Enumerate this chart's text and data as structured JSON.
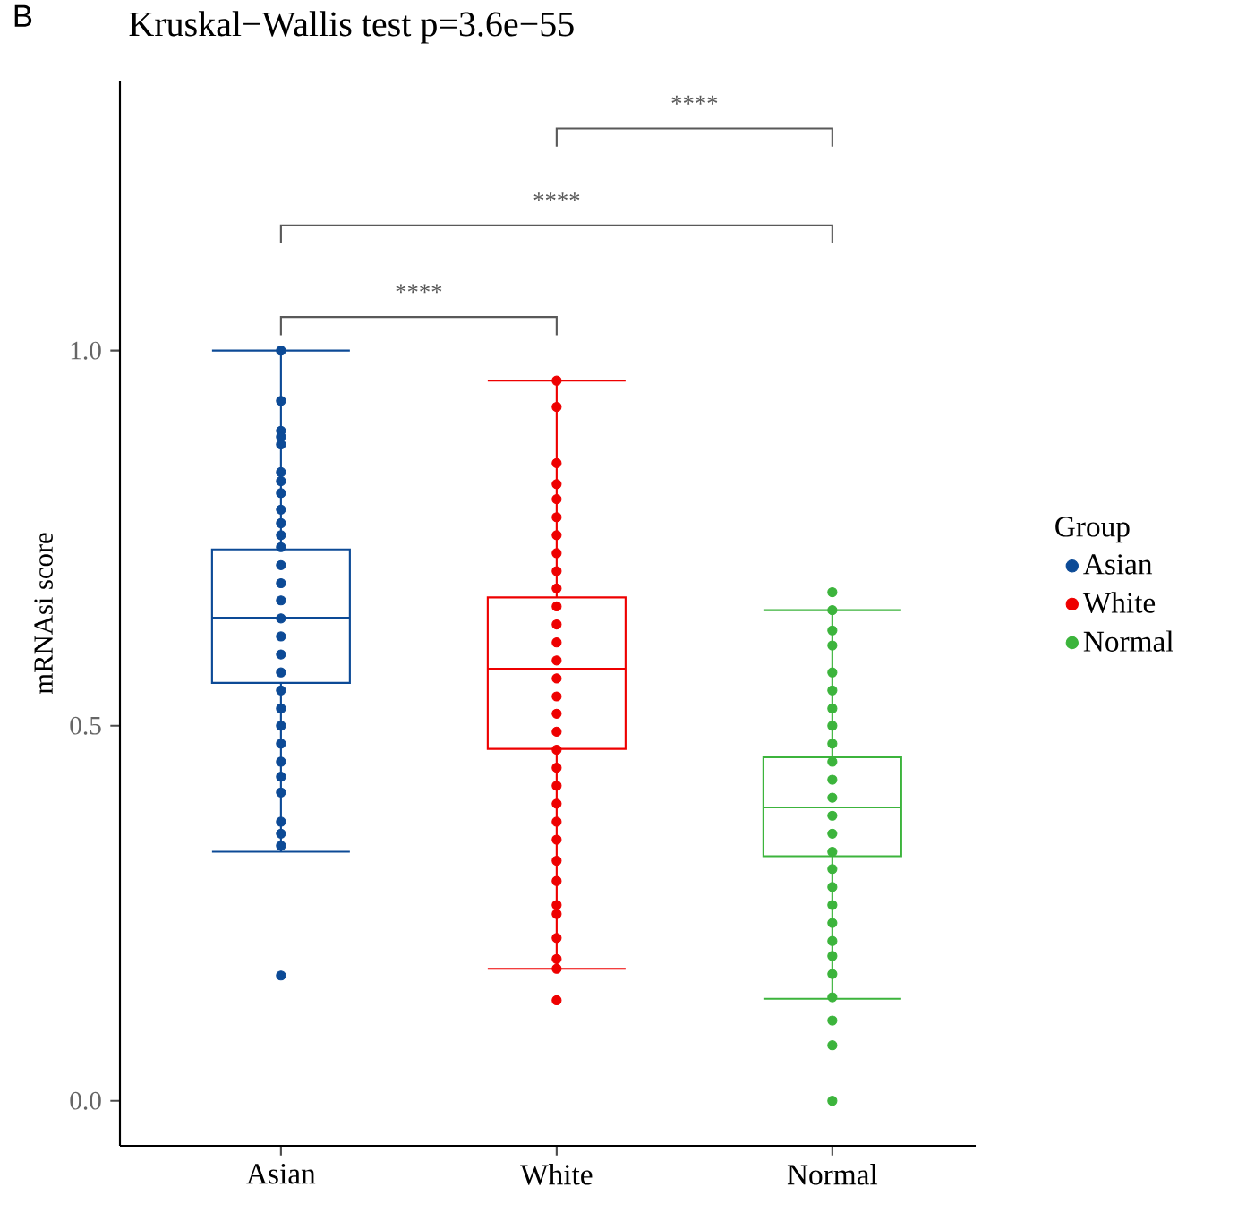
{
  "chart_data": {
    "type": "box",
    "title": "Kruskal−Wallis test p=3.6e−55",
    "ylabel": "mRNAsi score",
    "legend_title": "Group",
    "legend": "right",
    "categories": [
      "Asian",
      "White",
      "Normal"
    ],
    "annotations": [
      "B",
      "****",
      "****",
      "****"
    ],
    "ylim": [
      -0.06,
      1.36
    ],
    "yticks": [
      {
        "value": 0,
        "label": "0.0"
      },
      {
        "value": 0.5,
        "label": "0.5"
      },
      {
        "value": 1,
        "label": "1.0"
      }
    ],
    "series": [
      {
        "name": "Asian",
        "color": "#0c4a96",
        "boxes": [
          {
            "low": 0.332,
            "q1": 0.557,
            "median": 0.644,
            "q3": 0.735,
            "high": 1.0,
            "outliers": [
              0.167
            ]
          },
          null,
          null
        ]
      },
      {
        "name": "White",
        "color": "#ee0000",
        "boxes": [
          null,
          {
            "low": 0.176,
            "q1": 0.469,
            "median": 0.576,
            "q3": 0.671,
            "high": 0.96,
            "outliers": [
              0.134
            ]
          },
          null
        ]
      },
      {
        "name": "Normal",
        "color": "#3cb43c",
        "boxes": [
          null,
          null,
          {
            "low": 0.136,
            "q1": 0.326,
            "median": 0.391,
            "q3": 0.458,
            "high": 0.654,
            "outliers": [
              0.678,
              0.107,
              0.074,
              0.0
            ]
          }
        ]
      },
      {
        "type": "scatter",
        "color": "#0c4a96",
        "x": [
          "Asian",
          "Asian",
          "Asian",
          "Asian",
          "Asian",
          "Asian",
          "Asian",
          "Asian",
          "Asian",
          "Asian",
          "Asian",
          "Asian",
          "Asian",
          "Asian",
          "Asian",
          "Asian",
          "Asian",
          "Asian",
          "Asian",
          "Asian",
          "Asian",
          "Asian",
          "Asian",
          "Asian",
          "Asian",
          "Asian",
          "Asian",
          "Asian",
          "Asian"
        ],
        "values": [
          1.0,
          0.933,
          0.893,
          0.885,
          0.875,
          0.838,
          0.826,
          0.81,
          0.788,
          0.77,
          0.754,
          0.738,
          0.714,
          0.69,
          0.667,
          0.643,
          0.619,
          0.595,
          0.571,
          0.547,
          0.523,
          0.5,
          0.476,
          0.452,
          0.432,
          0.411,
          0.372,
          0.356,
          0.34
        ]
      },
      {
        "type": "scatter",
        "color": "#ee0000",
        "x": [
          "White",
          "White",
          "White",
          "White",
          "White",
          "White",
          "White",
          "White",
          "White",
          "White",
          "White",
          "White",
          "White",
          "White",
          "White",
          "White",
          "White",
          "White",
          "White",
          "White",
          "White",
          "White",
          "White",
          "White",
          "White",
          "White",
          "White",
          "White",
          "White",
          "White",
          "White"
        ],
        "values": [
          0.96,
          0.925,
          0.85,
          0.822,
          0.802,
          0.778,
          0.754,
          0.73,
          0.706,
          0.683,
          0.659,
          0.635,
          0.611,
          0.587,
          0.563,
          0.539,
          0.516,
          0.492,
          0.468,
          0.444,
          0.42,
          0.396,
          0.372,
          0.348,
          0.32,
          0.293,
          0.261,
          0.249,
          0.217,
          0.189,
          0.176
        ]
      },
      {
        "type": "scatter",
        "color": "#3cb43c",
        "x": [
          "Normal",
          "Normal",
          "Normal",
          "Normal",
          "Normal",
          "Normal",
          "Normal",
          "Normal",
          "Normal",
          "Normal",
          "Normal",
          "Normal",
          "Normal",
          "Normal",
          "Normal",
          "Normal",
          "Normal",
          "Normal",
          "Normal",
          "Normal",
          "Normal",
          "Normal"
        ],
        "values": [
          0.654,
          0.627,
          0.607,
          0.571,
          0.547,
          0.523,
          0.5,
          0.476,
          0.452,
          0.428,
          0.404,
          0.38,
          0.356,
          0.332,
          0.309,
          0.285,
          0.261,
          0.237,
          0.213,
          0.193,
          0.169,
          0.138
        ]
      }
    ]
  }
}
